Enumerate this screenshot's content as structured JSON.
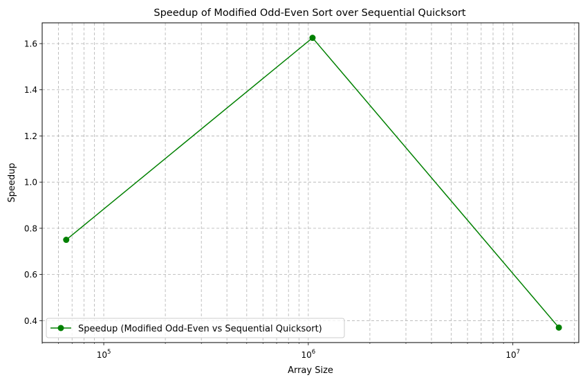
{
  "chart_data": {
    "type": "line",
    "title": "Speedup of Modified Odd-Even Sort over Sequential Quicksort",
    "xlabel": "Array Size",
    "ylabel": "Speedup",
    "xscale": "log",
    "xlim": [
      50000,
      21000000
    ],
    "ylim": [
      0.305,
      1.69
    ],
    "x_ticks": [
      {
        "value": 100000,
        "base": "10",
        "exp": "5"
      },
      {
        "value": 1000000,
        "base": "10",
        "exp": "6"
      },
      {
        "value": 10000000,
        "base": "10",
        "exp": "7"
      }
    ],
    "y_ticks": [
      {
        "value": 0.4,
        "label": "0.4"
      },
      {
        "value": 0.6,
        "label": "0.6"
      },
      {
        "value": 0.8,
        "label": "0.8"
      },
      {
        "value": 1.0,
        "label": "1.0"
      },
      {
        "value": 1.2,
        "label": "1.2"
      },
      {
        "value": 1.4,
        "label": "1.4"
      },
      {
        "value": 1.6,
        "label": "1.6"
      }
    ],
    "grid": true,
    "grid_minor": true,
    "legend_position": "lower-left",
    "series": [
      {
        "name": "Speedup (Modified Odd-Even vs Sequential Quicksort)",
        "color": "#008000",
        "marker": "circle",
        "x": [
          65536,
          1048576,
          16777216
        ],
        "y": [
          0.75,
          1.625,
          0.37
        ]
      }
    ]
  }
}
